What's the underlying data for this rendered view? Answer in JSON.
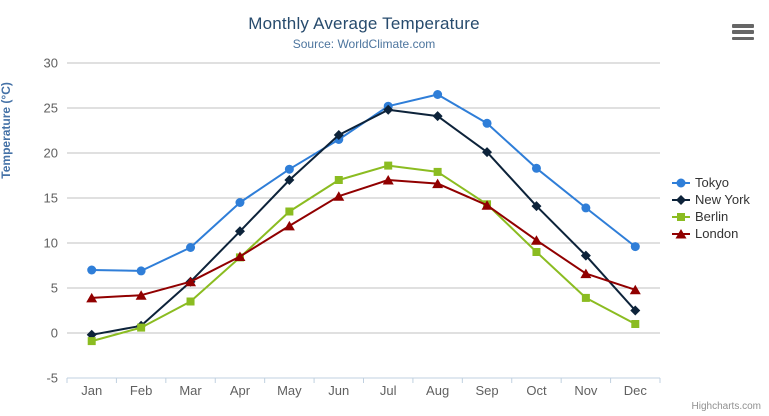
{
  "chart_data": {
    "type": "line",
    "title": "Monthly Average Temperature",
    "subtitle": "Source: WorldClimate.com",
    "xlabel": "",
    "ylabel": "Temperature (°C)",
    "categories": [
      "Jan",
      "Feb",
      "Mar",
      "Apr",
      "May",
      "Jun",
      "Jul",
      "Aug",
      "Sep",
      "Oct",
      "Nov",
      "Dec"
    ],
    "series": [
      {
        "name": "Tokyo",
        "color": "#2f7ed8",
        "marker": "circle",
        "values": [
          7.0,
          6.9,
          9.5,
          14.5,
          18.2,
          21.5,
          25.2,
          26.5,
          23.3,
          18.3,
          13.9,
          9.6
        ]
      },
      {
        "name": "New York",
        "color": "#0d233a",
        "marker": "diamond",
        "values": [
          -0.2,
          0.8,
          5.7,
          11.3,
          17.0,
          22.0,
          24.8,
          24.1,
          20.1,
          14.1,
          8.6,
          2.5
        ]
      },
      {
        "name": "Berlin",
        "color": "#8bbc21",
        "marker": "square",
        "values": [
          -0.9,
          0.6,
          3.5,
          8.4,
          13.5,
          17.0,
          18.6,
          17.9,
          14.3,
          9.0,
          3.9,
          1.0
        ]
      },
      {
        "name": "London",
        "color": "#910000",
        "marker": "triangle",
        "values": [
          3.9,
          4.2,
          5.7,
          8.5,
          11.9,
          15.2,
          17.0,
          16.6,
          14.2,
          10.3,
          6.6,
          4.8
        ]
      }
    ],
    "ylim": [
      -5,
      30
    ],
    "yticks": [
      -5,
      0,
      5,
      10,
      15,
      20,
      25,
      30
    ],
    "grid": true,
    "legend_position": "right"
  },
  "ui": {
    "credits": "Highcharts.com",
    "menu_icon": "hamburger-icon"
  },
  "colors": {
    "title": "#274b6d",
    "subtitle": "#4d759e",
    "axis_title": "#4572a7",
    "tick_labels": "#606060",
    "grid_line": "#c0c0c0",
    "axis_line": "#c0d0e0",
    "legend_text": "#333333",
    "credits": "#909090"
  }
}
